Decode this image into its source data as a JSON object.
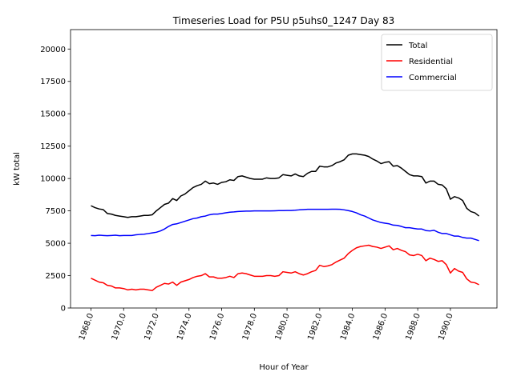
{
  "chart_data": {
    "type": "line",
    "title": "Timeseries Load for P5U p5uhs0_1247  Day 83",
    "xlabel": "Hour of Year",
    "ylabel": "kW total",
    "xlim": [
      1966.75,
      1992.85
    ],
    "ylim": [
      0,
      21500
    ],
    "x_ticks": [
      1968,
      1970,
      1972,
      1974,
      1976,
      1978,
      1980,
      1982,
      1984,
      1986,
      1988,
      1990
    ],
    "x_tick_labels": [
      "1968.0",
      "1970.0",
      "1972.0",
      "1974.0",
      "1976.0",
      "1978.0",
      "1980.0",
      "1982.0",
      "1984.0",
      "1986.0",
      "1988.0",
      "1990.0"
    ],
    "y_ticks": [
      0,
      2500,
      5000,
      7500,
      10000,
      12500,
      15000,
      17500,
      20000
    ],
    "y_tick_labels": [
      "0",
      "2500",
      "5000",
      "7500",
      "10000",
      "12500",
      "15000",
      "17500",
      "20000"
    ],
    "legend_position": "upper-right",
    "x": [
      1968.0,
      1968.25,
      1968.5,
      1968.75,
      1969.0,
      1969.25,
      1969.5,
      1969.75,
      1970.0,
      1970.25,
      1970.5,
      1970.75,
      1971.0,
      1971.25,
      1971.5,
      1971.75,
      1972.0,
      1972.25,
      1972.5,
      1972.75,
      1973.0,
      1973.25,
      1973.5,
      1973.75,
      1974.0,
      1974.25,
      1974.5,
      1974.75,
      1975.0,
      1975.25,
      1975.5,
      1975.75,
      1976.0,
      1976.25,
      1976.5,
      1976.75,
      1977.0,
      1977.25,
      1977.5,
      1977.75,
      1978.0,
      1978.25,
      1978.5,
      1978.75,
      1979.0,
      1979.25,
      1979.5,
      1979.75,
      1980.0,
      1980.25,
      1980.5,
      1980.75,
      1981.0,
      1981.25,
      1981.5,
      1981.75,
      1982.0,
      1982.25,
      1982.5,
      1982.75,
      1983.0,
      1983.25,
      1983.5,
      1983.75,
      1984.0,
      1984.25,
      1984.5,
      1984.75,
      1985.0,
      1985.25,
      1985.5,
      1985.75,
      1986.0,
      1986.25,
      1986.5,
      1986.75,
      1987.0,
      1987.25,
      1987.5,
      1987.75,
      1988.0,
      1988.25,
      1988.5,
      1988.75,
      1989.0,
      1989.25,
      1989.5,
      1989.75,
      1990.0,
      1990.25,
      1990.5,
      1990.75,
      1991.0,
      1991.25,
      1991.5,
      1991.75
    ],
    "series": [
      {
        "name": "Total",
        "color": "#000000",
        "values": [
          7900,
          7750,
          7650,
          7600,
          7300,
          7250,
          7150,
          7100,
          7050,
          7000,
          7050,
          7050,
          7100,
          7150,
          7150,
          7200,
          7500,
          7750,
          8000,
          8100,
          8450,
          8300,
          8650,
          8800,
          9050,
          9300,
          9450,
          9550,
          9800,
          9600,
          9650,
          9550,
          9700,
          9750,
          9900,
          9850,
          10150,
          10200,
          10100,
          10000,
          9950,
          9950,
          9950,
          10050,
          10000,
          10000,
          10050,
          10300,
          10250,
          10200,
          10350,
          10200,
          10150,
          10400,
          10550,
          10550,
          10950,
          10900,
          10900,
          11000,
          11200,
          11300,
          11450,
          11800,
          11900,
          11900,
          11850,
          11800,
          11700,
          11500,
          11350,
          11150,
          11250,
          11300,
          10950,
          11000,
          10800,
          10550,
          10300,
          10200,
          10200,
          10150,
          9650,
          9800,
          9800,
          9550,
          9500,
          9200,
          8400,
          8600,
          8500,
          8300,
          7700,
          7450,
          7350,
          7100
        ]
      },
      {
        "name": "Residential",
        "color": "#ff0000",
        "values": [
          2300,
          2150,
          2000,
          1950,
          1750,
          1700,
          1550,
          1550,
          1500,
          1400,
          1450,
          1400,
          1450,
          1450,
          1400,
          1350,
          1600,
          1750,
          1900,
          1850,
          2000,
          1750,
          2000,
          2100,
          2200,
          2350,
          2450,
          2500,
          2650,
          2400,
          2400,
          2300,
          2300,
          2350,
          2450,
          2350,
          2650,
          2700,
          2650,
          2550,
          2450,
          2450,
          2450,
          2500,
          2500,
          2450,
          2500,
          2800,
          2750,
          2700,
          2800,
          2650,
          2550,
          2650,
          2800,
          2900,
          3300,
          3200,
          3250,
          3350,
          3550,
          3700,
          3850,
          4200,
          4450,
          4650,
          4750,
          4800,
          4850,
          4750,
          4700,
          4600,
          4700,
          4800,
          4500,
          4600,
          4450,
          4350,
          4100,
          4050,
          4150,
          4050,
          3650,
          3850,
          3750,
          3600,
          3650,
          3350,
          2700,
          3050,
          2850,
          2750,
          2250,
          2000,
          1950,
          1800
        ]
      },
      {
        "name": "Commercial",
        "color": "#0000ff",
        "values": [
          5600,
          5580,
          5620,
          5600,
          5580,
          5600,
          5620,
          5580,
          5600,
          5600,
          5600,
          5650,
          5680,
          5700,
          5750,
          5800,
          5850,
          5950,
          6100,
          6300,
          6450,
          6500,
          6600,
          6700,
          6800,
          6900,
          6950,
          7050,
          7100,
          7200,
          7250,
          7250,
          7300,
          7350,
          7400,
          7420,
          7450,
          7470,
          7480,
          7480,
          7500,
          7500,
          7500,
          7500,
          7500,
          7510,
          7520,
          7520,
          7530,
          7530,
          7550,
          7580,
          7600,
          7620,
          7620,
          7620,
          7620,
          7620,
          7620,
          7630,
          7630,
          7620,
          7580,
          7520,
          7450,
          7350,
          7200,
          7100,
          6950,
          6800,
          6700,
          6600,
          6550,
          6500,
          6400,
          6380,
          6300,
          6200,
          6200,
          6150,
          6100,
          6100,
          5980,
          5950,
          6000,
          5850,
          5750,
          5750,
          5650,
          5550,
          5550,
          5450,
          5400,
          5400,
          5300,
          5200
        ]
      }
    ]
  }
}
